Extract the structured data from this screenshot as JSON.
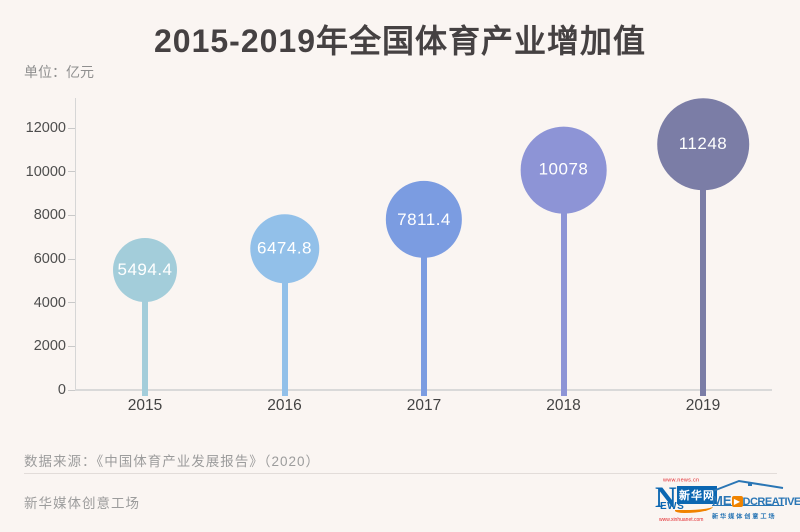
{
  "title": "2015-2019年全国体育产业增加值",
  "unit_label": "单位：亿元",
  "chart_data": {
    "type": "lollipop",
    "title": "2015-2019年全国体育产业增加值",
    "ylabel": "单位：亿元",
    "categories": [
      "2015",
      "2016",
      "2017",
      "2018",
      "2019"
    ],
    "values": [
      5494.4,
      6474.8,
      7811.4,
      10078,
      11248
    ],
    "point_labels": [
      "5494.4",
      "6474.8",
      "7811.4",
      "10078",
      "11248"
    ],
    "colors": [
      "#a3cdda",
      "#92c0e9",
      "#7b9ce1",
      "#8d94d6",
      "#7b7da6"
    ],
    "ylim": [
      0,
      12000
    ],
    "yticks": [
      0,
      2000,
      4000,
      6000,
      8000,
      10000,
      12000
    ],
    "grid": false,
    "legend": false,
    "bubble_size_scales_with_value": true
  },
  "footer": {
    "source": "数据来源：《中国体育产业发展报告》（2020）",
    "studio": "新华媒体创意工场"
  },
  "logos": {
    "xinhua": {
      "url_top": "www.news.cn",
      "n_letter": "N",
      "name": "新华网",
      "news_suffix": "EWS",
      "url_bottom": "www.xinhuanet.com",
      "blue": "#0b66b1",
      "orange": "#f08300"
    },
    "medcreative": {
      "brand_start": "ME",
      "brand_rest": "DCREATIVE",
      "caption": "新华媒体创意工场",
      "blue": "#2a76b5",
      "orange": "#f08300"
    }
  }
}
